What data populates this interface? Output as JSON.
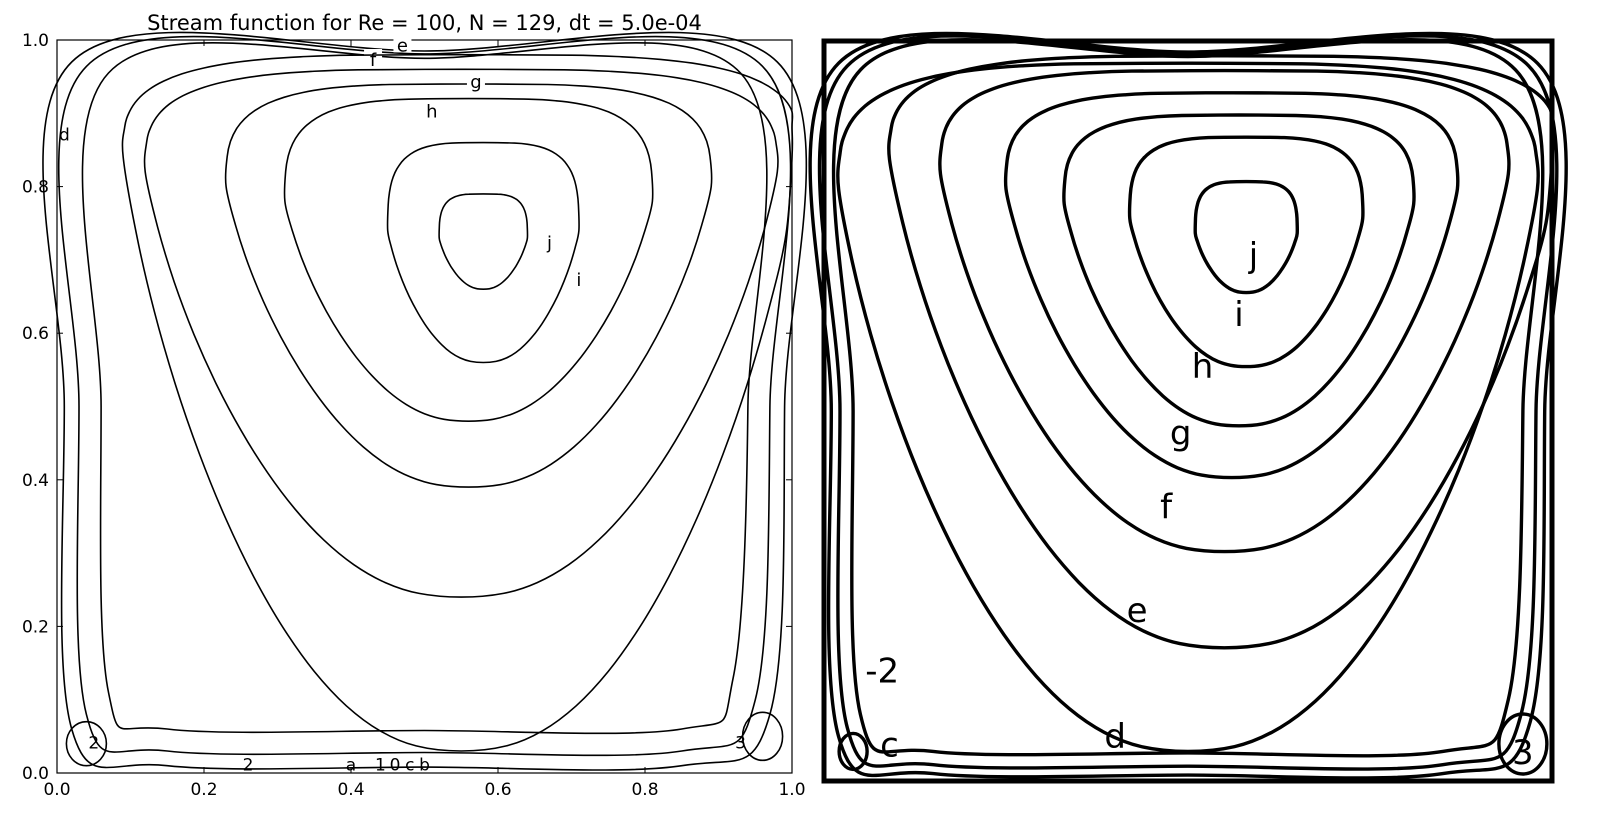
{
  "chart_data": [
    {
      "type": "contour",
      "title": "Stream function for Re = 100, N = 129, dt = 5.0e-04",
      "xlabel": "",
      "ylabel": "",
      "xlim": [
        0.0,
        1.0
      ],
      "ylim": [
        0.0,
        1.0
      ],
      "x_ticks": [
        "0.0",
        "0.2",
        "0.4",
        "0.6",
        "0.8",
        "1.0"
      ],
      "y_ticks": [
        "0.0",
        "0.2",
        "0.4",
        "0.6",
        "0.8",
        "1.0"
      ],
      "grid": false,
      "primary_vortex_center": [
        0.62,
        0.73
      ],
      "contours": [
        {
          "label": "j",
          "cx": 0.58,
          "cy": 0.73,
          "rx": 0.06,
          "ry_up": 0.06,
          "ry_down": 0.07,
          "label_at": [
            0.67,
            0.72
          ]
        },
        {
          "label": "i",
          "cx": 0.58,
          "cy": 0.74,
          "rx": 0.13,
          "ry_up": 0.12,
          "ry_down": 0.18,
          "label_at": [
            0.71,
            0.67
          ]
        },
        {
          "label": "h",
          "cx": 0.56,
          "cy": 0.78,
          "rx": 0.25,
          "ry_up": 0.14,
          "ry_down": 0.3,
          "label_at": [
            0.51,
            0.9
          ]
        },
        {
          "label": "g",
          "cx": 0.56,
          "cy": 0.8,
          "rx": 0.33,
          "ry_up": 0.14,
          "ry_down": 0.41,
          "label_at": [
            0.57,
            0.94
          ]
        },
        {
          "label": "f",
          "cx": 0.55,
          "cy": 0.82,
          "rx": 0.43,
          "ry_up": 0.14,
          "ry_down": 0.58,
          "label_at": [
            0.43,
            0.97
          ]
        },
        {
          "label": "e",
          "cx": 0.55,
          "cy": 0.84,
          "rx": 0.46,
          "ry_up": 0.14,
          "ry_down": 0.81,
          "label_at": [
            0.47,
            0.99
          ]
        }
      ],
      "corner_labels": [
        {
          "text": "d",
          "at": [
            0.01,
            0.87
          ]
        },
        {
          "text": "2",
          "at": [
            0.05,
            0.04
          ]
        },
        {
          "text": "3",
          "at": [
            0.93,
            0.04
          ]
        },
        {
          "text": "2",
          "at": [
            0.26,
            0.01
          ]
        },
        {
          "text": "a",
          "at": [
            0.4,
            0.01
          ]
        },
        {
          "text": "1",
          "at": [
            0.44,
            0.01
          ]
        },
        {
          "text": "0",
          "at": [
            0.46,
            0.01
          ]
        },
        {
          "text": "c",
          "at": [
            0.48,
            0.01
          ]
        },
        {
          "text": "b",
          "at": [
            0.5,
            0.01
          ]
        }
      ]
    },
    {
      "type": "contour",
      "title": "",
      "xlabel": "",
      "ylabel": "",
      "xlim": [
        0.0,
        1.0
      ],
      "ylim": [
        0.0,
        1.0
      ],
      "primary_vortex_center": [
        0.62,
        0.73
      ],
      "contours": [
        {
          "label": "j",
          "cx": 0.58,
          "cy": 0.74,
          "rx": 0.07,
          "ry_up": 0.07,
          "ry_down": 0.08,
          "label_at": [
            0.59,
            0.7
          ]
        },
        {
          "label": "i",
          "cx": 0.58,
          "cy": 0.76,
          "rx": 0.16,
          "ry_up": 0.11,
          "ry_down": 0.2,
          "label_at": [
            0.57,
            0.62
          ]
        },
        {
          "label": "h",
          "cx": 0.57,
          "cy": 0.78,
          "rx": 0.24,
          "ry_up": 0.12,
          "ry_down": 0.3,
          "label_at": [
            0.52,
            0.55
          ]
        },
        {
          "label": "g",
          "cx": 0.56,
          "cy": 0.8,
          "rx": 0.31,
          "ry_up": 0.13,
          "ry_down": 0.39,
          "label_at": [
            0.49,
            0.46
          ]
        },
        {
          "label": "f",
          "cx": 0.55,
          "cy": 0.82,
          "rx": 0.39,
          "ry_up": 0.14,
          "ry_down": 0.51,
          "label_at": [
            0.47,
            0.36
          ]
        },
        {
          "label": "e",
          "cx": 0.55,
          "cy": 0.84,
          "rx": 0.46,
          "ry_up": 0.14,
          "ry_down": 0.66,
          "label_at": [
            0.43,
            0.22
          ]
        },
        {
          "label": "d",
          "cx": 0.5,
          "cy": 0.8,
          "rx": 0.48,
          "ry_up": 0.17,
          "ry_down": 0.76,
          "label_at": [
            0.4,
            0.05
          ]
        }
      ],
      "corner_labels": [
        {
          "text": "-2",
          "at": [
            0.08,
            0.14
          ]
        },
        {
          "text": "c",
          "at": [
            0.09,
            0.04
          ]
        },
        {
          "text": "3",
          "at": [
            0.96,
            0.03
          ]
        }
      ]
    }
  ]
}
